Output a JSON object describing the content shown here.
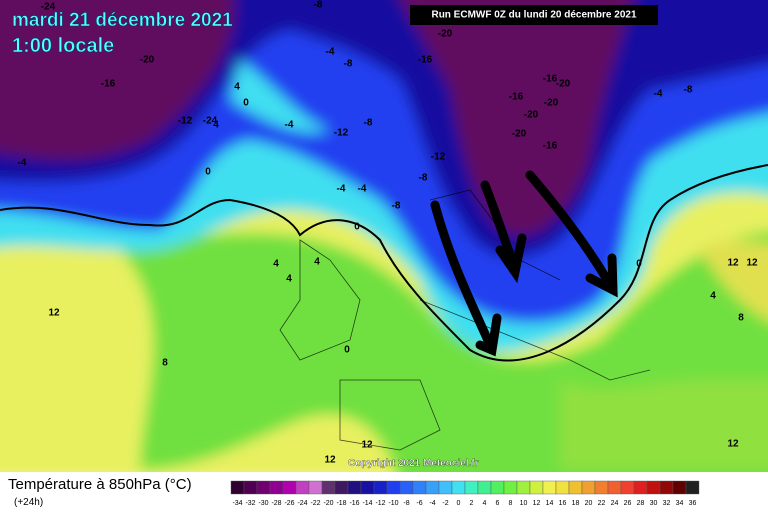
{
  "header": {
    "date": "mardi 21 décembre 2021",
    "time": "1:00 locale",
    "run": "Run ECMWF 0Z du lundi 20 décembre 2021"
  },
  "copyright": "Copyright 2021 Meteociel.fr",
  "footer": {
    "title": "Température à 850hPa (°C)",
    "lead": "(+24h)"
  },
  "legend": {
    "ticks": [
      -34,
      -32,
      -30,
      -28,
      -26,
      -24,
      -22,
      -20,
      -18,
      -16,
      -14,
      -12,
      -10,
      -8,
      -6,
      -4,
      -2,
      0,
      2,
      4,
      6,
      8,
      10,
      12,
      14,
      16,
      18,
      20,
      22,
      24,
      26,
      28,
      30,
      32,
      34,
      36
    ],
    "colors": [
      "#300030",
      "#500050",
      "#700070",
      "#900090",
      "#b000b0",
      "#c040c0",
      "#d070d0",
      "#603070",
      "#401860",
      "#201080",
      "#1810a0",
      "#1820c8",
      "#2040f0",
      "#2860f8",
      "#3080f8",
      "#38a0f8",
      "#40c0f8",
      "#40e0f0",
      "#40f0c0",
      "#40f090",
      "#50f060",
      "#70f040",
      "#a0f040",
      "#d0f040",
      "#f0f050",
      "#f0e040",
      "#f0c030",
      "#f0a030",
      "#f08030",
      "#f06030",
      "#f04030",
      "#e02020",
      "#c01010",
      "#900808",
      "#600000",
      "#202020"
    ]
  },
  "map_labels": [
    -24,
    -20,
    -16,
    -4,
    -12,
    -24,
    0,
    4,
    0,
    4,
    -4,
    -8,
    -4,
    -12,
    -8,
    -4,
    -4,
    -8,
    -8,
    -12,
    0,
    -16,
    -20,
    -20,
    -20,
    -16,
    -16,
    -20,
    -4,
    -8,
    -16,
    -20,
    -8,
    4,
    4,
    4,
    0,
    12,
    12,
    4,
    8,
    12,
    8,
    0,
    12,
    12,
    12
  ]
}
